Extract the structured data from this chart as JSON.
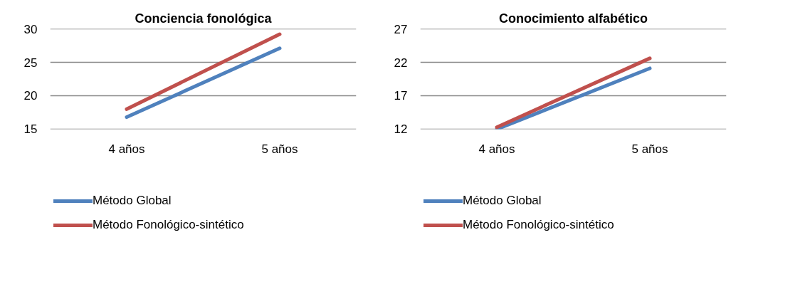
{
  "chart_data": [
    {
      "type": "line",
      "title": "Conciencia fonológica",
      "categories": [
        "4 años",
        "5 años"
      ],
      "ylim": [
        15,
        30
      ],
      "yticks": [
        15,
        20,
        25,
        30
      ],
      "grid": "y",
      "legend": "bottom",
      "marker": "none",
      "line_style": "solid",
      "series": [
        {
          "name": "Método Global",
          "color": "#4f81bd",
          "values": [
            16.8,
            27.1
          ]
        },
        {
          "name": "Método Fonológico-sintético",
          "color": "#c0504d",
          "values": [
            18.0,
            29.2
          ]
        }
      ]
    },
    {
      "type": "line",
      "title": "Conocimiento alfabético",
      "categories": [
        "4 años",
        "5 años"
      ],
      "ylim": [
        12,
        27
      ],
      "yticks": [
        12,
        17,
        22,
        27
      ],
      "grid": "y",
      "legend": "bottom",
      "marker": "none",
      "line_style": "solid",
      "series": [
        {
          "name": "Método Global",
          "color": "#4f81bd",
          "values": [
            12.0,
            21.1
          ]
        },
        {
          "name": "Método Fonológico-sintético",
          "color": "#c0504d",
          "values": [
            12.3,
            22.6
          ]
        }
      ]
    }
  ]
}
